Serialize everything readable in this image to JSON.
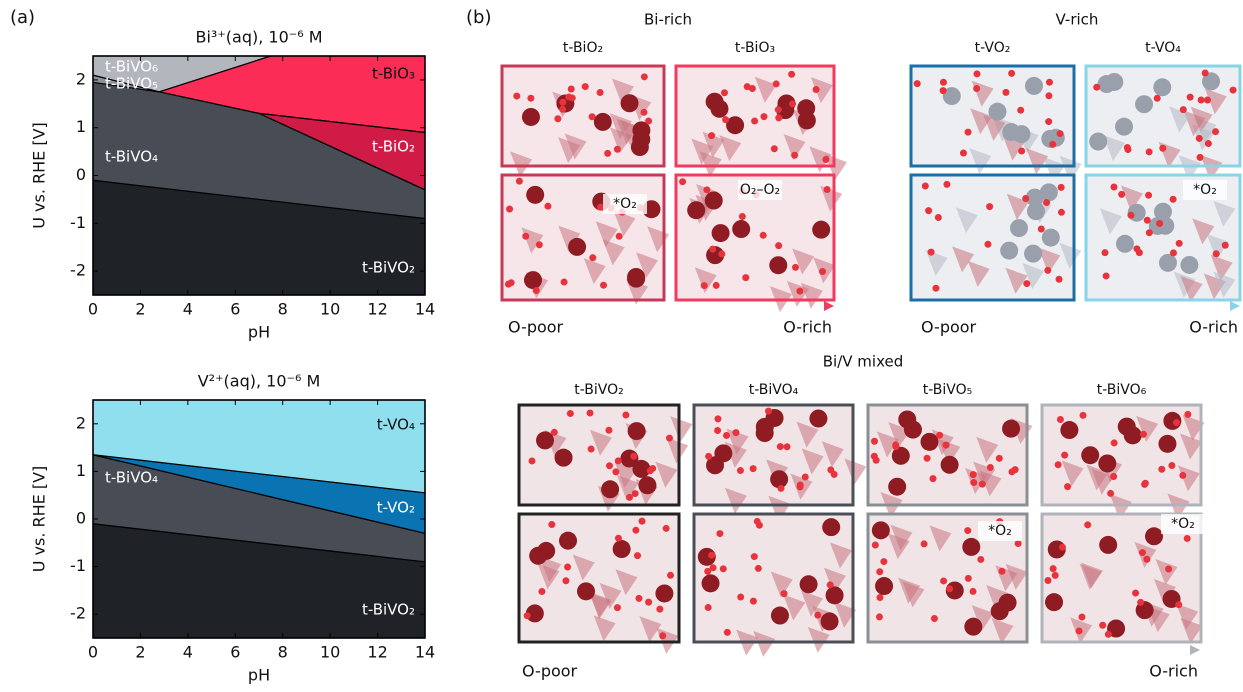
{
  "chart_data": [
    {
      "type": "pourbaix",
      "title": "Bi³⁺(aq), 10⁻⁶ M",
      "x_label": "pH",
      "y_label": "U vs.  RHE [V]",
      "xlim": [
        0,
        14
      ],
      "ylim": [
        -2.5,
        2.5
      ],
      "xticks": [
        0,
        2,
        4,
        6,
        8,
        10,
        12,
        14
      ],
      "yticks": [
        -2,
        -1,
        0,
        1,
        2
      ],
      "regions": [
        {
          "name": "t-BiVO₂",
          "color": "#1f2226",
          "x": [
            0,
            14,
            14,
            0
          ],
          "y": [
            -2.5,
            -2.5,
            -0.9,
            -0.1
          ]
        },
        {
          "name": "t-BiVO₄",
          "color": "#474c55",
          "x": [
            0,
            0,
            2.8,
            7,
            14,
            14
          ],
          "y": [
            -0.1,
            1.95,
            1.75,
            1.3,
            -0.3,
            -0.9
          ]
        },
        {
          "name": "t-BiVO₅",
          "color": "#8e9299",
          "x": [
            0,
            0,
            2.8
          ],
          "y": [
            1.95,
            2.1,
            1.75
          ]
        },
        {
          "name": "t-BiVO₆",
          "color": "#b3b7bd",
          "x": [
            0,
            0,
            7.5,
            2.8
          ],
          "y": [
            2.1,
            2.5,
            2.5,
            1.75
          ]
        },
        {
          "name": "t-BiO₃",
          "color": "#fb2c55",
          "x": [
            2.8,
            7.5,
            14,
            14,
            7
          ],
          "y": [
            1.75,
            2.5,
            2.5,
            0.9,
            1.3
          ]
        },
        {
          "name": "t-BiO₂",
          "color": "#cf1b45",
          "x": [
            7,
            14,
            14
          ],
          "y": [
            1.3,
            0.9,
            -0.3
          ]
        }
      ]
    },
    {
      "type": "pourbaix",
      "title": "V²⁺(aq), 10⁻⁶ M",
      "x_label": "pH",
      "y_label": "U vs.  RHE [V]",
      "xlim": [
        0,
        14
      ],
      "ylim": [
        -2.5,
        2.5
      ],
      "xticks": [
        0,
        2,
        4,
        6,
        8,
        10,
        12,
        14
      ],
      "yticks": [
        -2,
        -1,
        0,
        1,
        2
      ],
      "regions": [
        {
          "name": "t-BiVO₂",
          "color": "#1f2226",
          "x": [
            0,
            14,
            14,
            0
          ],
          "y": [
            -2.5,
            -2.5,
            -0.9,
            -0.1
          ]
        },
        {
          "name": "t-BiVO₄",
          "color": "#474c55",
          "x": [
            0,
            0,
            14,
            14
          ],
          "y": [
            -0.1,
            1.35,
            -0.3,
            -0.9
          ]
        },
        {
          "name": "t-VO₂",
          "color": "#0a74b3",
          "x": [
            0,
            14,
            14
          ],
          "y": [
            1.35,
            0.55,
            -0.3
          ]
        },
        {
          "name": "t-VO₄",
          "color": "#8fdfee",
          "x": [
            0,
            0,
            14,
            14
          ],
          "y": [
            1.35,
            2.5,
            2.5,
            0.55
          ]
        }
      ]
    }
  ],
  "panel_labels": [
    "(a)",
    "(b)"
  ],
  "structures": [
    {
      "title": "Bi-rich",
      "start": "O-poor",
      "end": "O-rich",
      "columns": [
        {
          "label": "t-BiO₂",
          "annotation": "*O₂"
        },
        {
          "label": "t-BiO₃",
          "annotation": "O₂–O₂"
        }
      ]
    },
    {
      "title": "V-rich",
      "start": "O-poor",
      "end": "O-rich",
      "columns": [
        {
          "label": "t-VO₂"
        },
        {
          "label": "t-VO₄",
          "annotation": "*O₂"
        }
      ]
    },
    {
      "title": "Bi/V mixed",
      "start": "O-poor",
      "end": "O-rich",
      "columns": [
        {
          "label": "t-BiVO₂"
        },
        {
          "label": "t-BiVO₄"
        },
        {
          "label": "t-BiVO₅",
          "annotation": "*O₂"
        },
        {
          "label": "t-BiVO₆",
          "annotation": "*O₂"
        }
      ]
    }
  ]
}
